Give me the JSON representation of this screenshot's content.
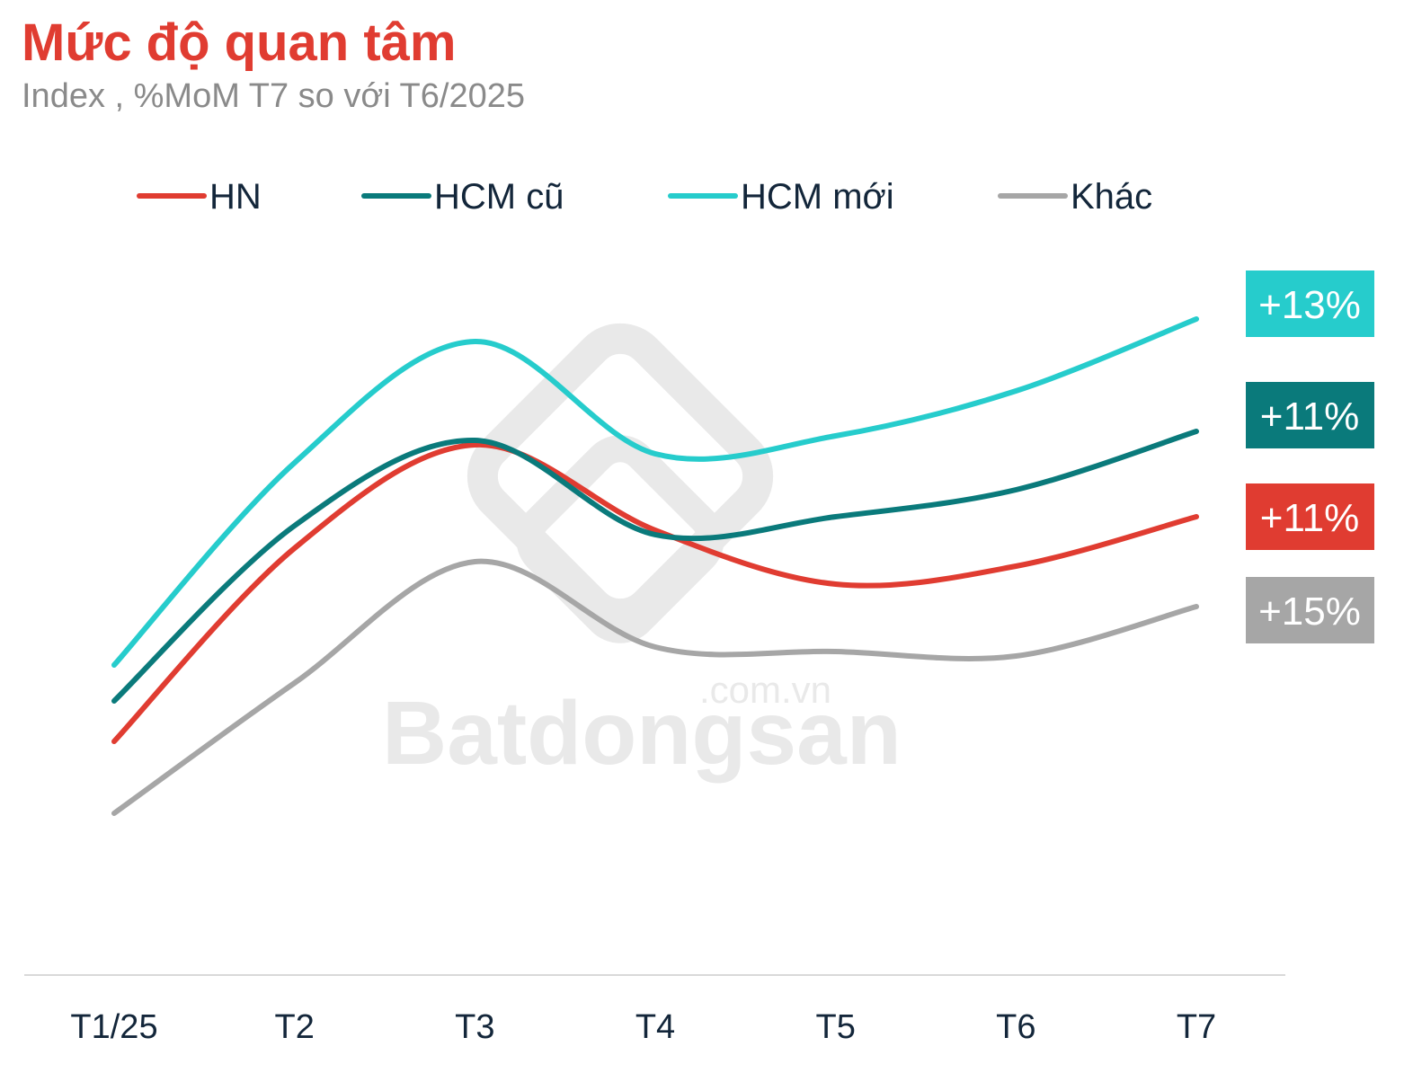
{
  "chart_data": {
    "type": "line",
    "title": "Mức độ quan tâm",
    "subtitle": "Index , %MoM T7 so với T6/2025",
    "categories": [
      "T1/25",
      "T2",
      "T3",
      "T4",
      "T5",
      "T6",
      "T7"
    ],
    "ylim": [
      0,
      217
    ],
    "grid": false,
    "legend_placement": "top",
    "series": [
      {
        "name": "HN",
        "color": "#e03c31",
        "values": [
          52,
          95,
          118,
          99,
          87,
          91,
          102
        ],
        "end_label": "+11%"
      },
      {
        "name": "HCM cũ",
        "color": "#0a7a7b",
        "values": [
          61,
          100,
          119,
          98,
          102,
          108,
          121
        ],
        "end_label": "+11%"
      },
      {
        "name": "HCM mới",
        "color": "#26cccc",
        "values": [
          69,
          114,
          141,
          116,
          120,
          130,
          146
        ],
        "end_label": "+13%"
      },
      {
        "name": "Khác",
        "color": "#a6a6a6",
        "values": [
          36,
          65,
          92,
          73,
          72,
          71,
          82
        ],
        "end_label": "+15%"
      }
    ],
    "watermark": {
      "brand": "Batdongsan",
      "suffix": ".com.vn"
    }
  }
}
